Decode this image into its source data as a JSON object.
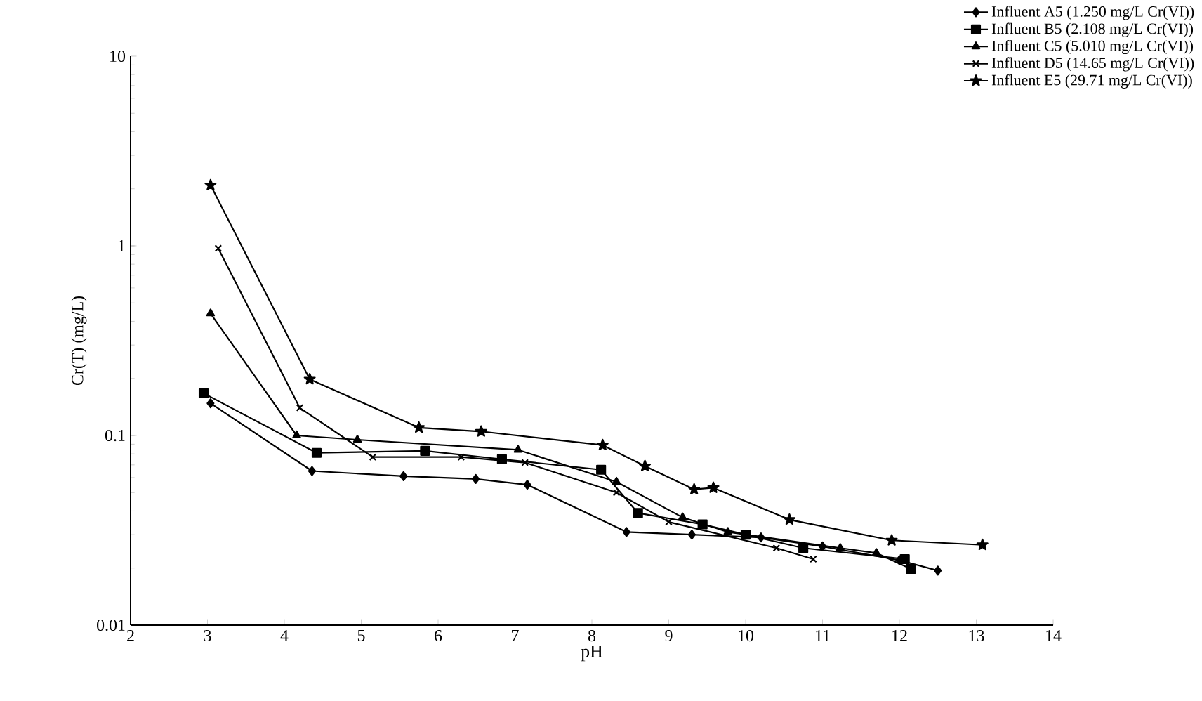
{
  "chart_data": {
    "type": "line",
    "xlabel": "pH",
    "ylabel": "Cr(T) (mg/L)",
    "log": "y",
    "grid": false,
    "legend": "top right",
    "line_style": "solid",
    "xlim": [
      2,
      14
    ],
    "ylim": [
      0.01,
      10
    ],
    "xticks": [
      2,
      3,
      4,
      5,
      6,
      7,
      8,
      9,
      10,
      11,
      12,
      13,
      14
    ],
    "yticks": [
      0.01,
      0.1,
      1,
      10
    ],
    "series": [
      {
        "name": "Influent A5 (1.250 mg/L Cr(VI))",
        "color": "#000000",
        "marker": "diamond",
        "x": [
          3.04,
          4.36,
          5.55,
          6.49,
          7.16,
          8.45,
          9.3,
          10.2,
          11.0,
          12.0,
          12.5
        ],
        "values": [
          0.148,
          0.065,
          0.061,
          0.059,
          0.055,
          0.031,
          0.03,
          0.029,
          0.026,
          0.022,
          0.0194
        ]
      },
      {
        "name": "Influent B5 (2.108  mg/L Cr(VI))",
        "color": "#000000",
        "marker": "square",
        "x": [
          2.95,
          4.42,
          5.83,
          6.83,
          8.12,
          8.6,
          9.44,
          10.0,
          10.75,
          12.07,
          12.15
        ],
        "values": [
          0.167,
          0.081,
          0.083,
          0.075,
          0.066,
          0.039,
          0.034,
          0.03,
          0.0255,
          0.0223,
          0.0198
        ]
      },
      {
        "name": "Influent C5 (5.010  mg/L Cr(VI))",
        "color": "#000000",
        "marker": "triangle",
        "x": [
          3.04,
          4.16,
          4.95,
          7.04,
          8.32,
          9.18,
          9.77,
          11.23,
          11.7,
          12.15
        ],
        "values": [
          0.44,
          0.1,
          0.095,
          0.084,
          0.057,
          0.037,
          0.031,
          0.0255,
          0.024,
          0.0198
        ]
      },
      {
        "name": "Influent D5 (14.65 mg/L Cr(VI))",
        "color": "#000000",
        "marker": "cross",
        "x": [
          3.14,
          4.2,
          5.15,
          6.3,
          7.13,
          8.32,
          9.0,
          10.4,
          10.88
        ],
        "values": [
          0.97,
          0.14,
          0.077,
          0.077,
          0.072,
          0.05,
          0.035,
          0.0255,
          0.0223
        ]
      },
      {
        "name": "Influent E5 (29.71 mg/L Cr(VI))",
        "color": "#000000",
        "marker": "star",
        "x": [
          3.04,
          4.33,
          5.75,
          6.56,
          8.14,
          8.69,
          9.33,
          9.58,
          10.57,
          11.9,
          13.08
        ],
        "values": [
          2.09,
          0.198,
          0.11,
          0.105,
          0.089,
          0.069,
          0.052,
          0.053,
          0.036,
          0.028,
          0.0265
        ]
      }
    ]
  }
}
